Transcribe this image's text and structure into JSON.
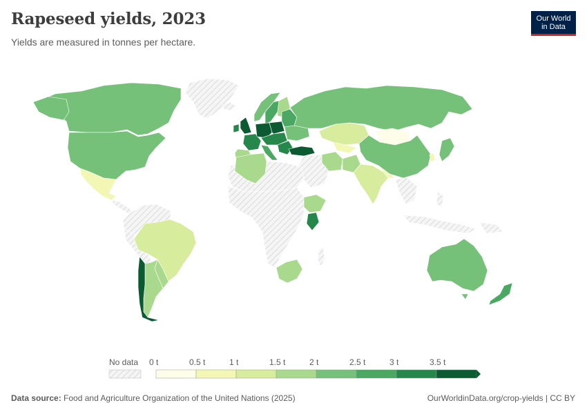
{
  "header": {
    "title": "Rapeseed yields, 2023",
    "subtitle": "Yields are measured in tonnes per hectare.",
    "logo_line1": "Our World",
    "logo_line2": "in Data"
  },
  "legend": {
    "no_data_label": "No data",
    "ticks": [
      "0 t",
      "0.5 t",
      "1 t",
      "1.5 t",
      "2 t",
      "2.5 t",
      "3 t",
      "3.5 t"
    ],
    "bin_colors": [
      "#fefde9",
      "#f2f7b4",
      "#d8ec9d",
      "#a9d98c",
      "#76c17a",
      "#4aa862",
      "#26874a",
      "#0b5a31"
    ]
  },
  "footer": {
    "source_label": "Data source:",
    "source_text": "Food and Agriculture Organization of the United Nations (2025)",
    "attribution": "OurWorldinData.org/crop-yields | CC BY"
  },
  "colors": {
    "no_data": "#e9e9e9",
    "border": "#ffffff"
  }
}
